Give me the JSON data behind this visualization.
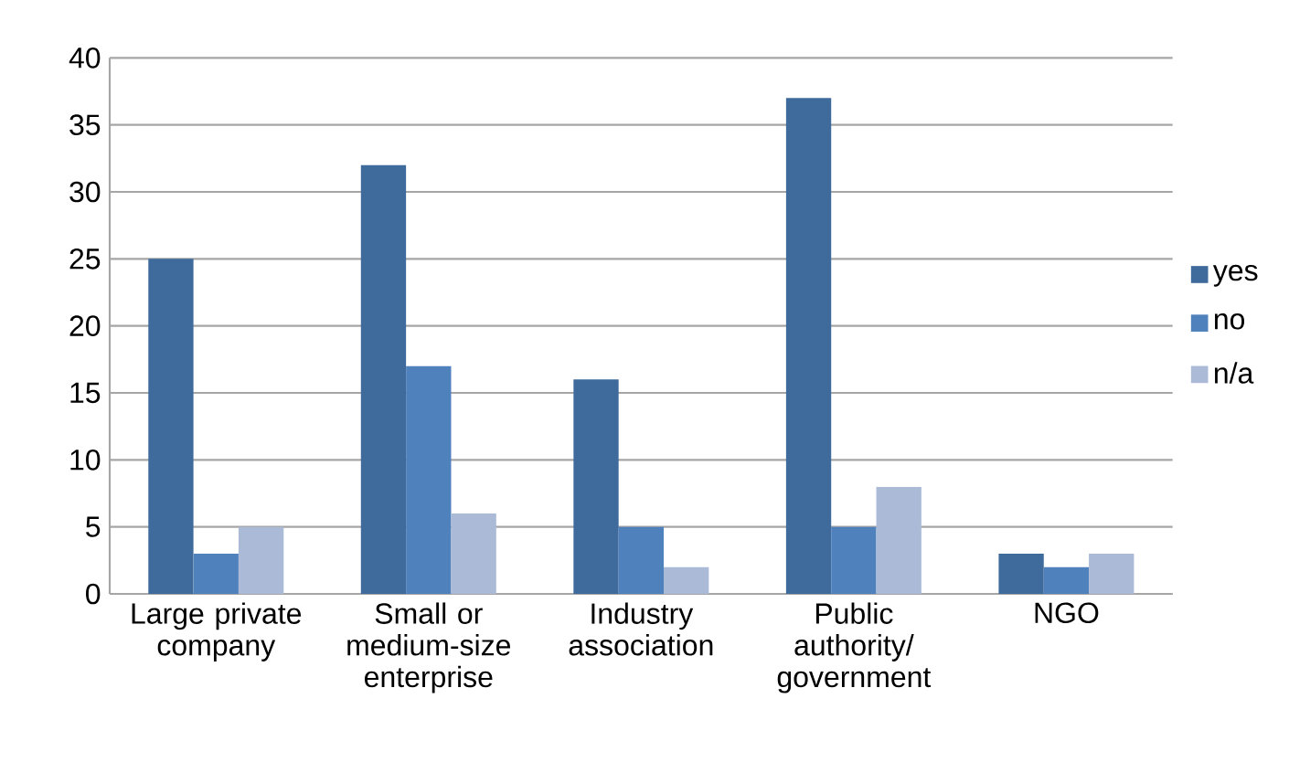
{
  "chart_data": {
    "type": "bar",
    "categories": [
      "Large private company",
      "Small or medium-size enterprise",
      "Industry association",
      "Public authority/ government",
      "NGO"
    ],
    "series": [
      {
        "name": "yes",
        "color": "#3f6b9c",
        "values": [
          25,
          32,
          16,
          37,
          3
        ]
      },
      {
        "name": "no",
        "color": "#4f81bd",
        "values": [
          3,
          17,
          5,
          5,
          2
        ]
      },
      {
        "name": "n/a",
        "color": "#aabad7",
        "values": [
          5,
          6,
          2,
          8,
          3
        ]
      }
    ],
    "ylim": [
      0,
      40
    ],
    "yticks": [
      0,
      5,
      10,
      15,
      20,
      25,
      30,
      35,
      40
    ],
    "grid": "y",
    "legend": "right"
  }
}
